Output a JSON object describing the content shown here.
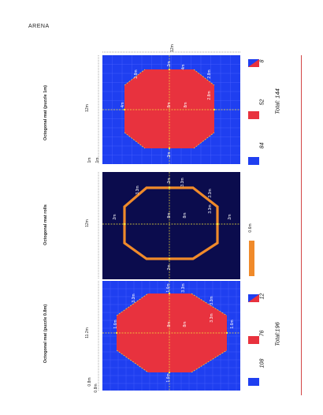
{
  "page": {
    "title": "ARENA"
  },
  "colors": {
    "blue": "#1f3ff0",
    "red": "#e8323e",
    "navy": "#0b0c4d",
    "orange": "#f08a2a",
    "yellow": "#f3e33a",
    "accent_line": "#d24646"
  },
  "panels": [
    {
      "title": "Octogonal mat (puzzle 1m)",
      "side_dim": "12m",
      "top_dim": "12m",
      "small_dims": [
        "1m",
        "1m"
      ],
      "labels": {
        "top": "2m",
        "bottom": "2m",
        "left": "4m",
        "right": "4m",
        "diag_tl": "2.8m",
        "diag_tr": "2.8m",
        "diag_bl": "2.8m",
        "center_a": "8m",
        "center_b": "8m"
      },
      "legend": [
        {
          "count": "84",
          "color": "blue"
        },
        {
          "count": "52",
          "color": "red"
        },
        {
          "count": "8",
          "color": "split"
        }
      ],
      "total": "Total: 144"
    },
    {
      "title": "Octogonal mat rolls",
      "side_dim": "12m",
      "labels": {
        "top": "2m",
        "bottom": "2m",
        "left": "2m",
        "right": "2m",
        "diag_tl": "3.3m",
        "diag_tr": "3.3m",
        "diag_bl": "3.3m",
        "diag_br": "3.3m",
        "center_a": "8m",
        "center_b": "8m"
      },
      "legend_width": "0.6m"
    },
    {
      "title": "Octogonal mat (puzzle 0.8m)",
      "side_dim": "11.2m",
      "small_dims": [
        "0.8m",
        "0.8m"
      ],
      "labels": {
        "top": "1.6m",
        "bottom": "1.6m",
        "left": "1.6m",
        "right": "1.6m",
        "diag_tl": "3.3m",
        "diag_tr": "3.3m",
        "diag_bl": "3.3m",
        "diag_br": "3.3m",
        "center_a": "8m",
        "center_b": "8m"
      },
      "legend": [
        {
          "count": "108",
          "color": "blue"
        },
        {
          "count": "76",
          "color": "red"
        },
        {
          "count": "12",
          "color": "split"
        }
      ],
      "total": "Total:196"
    }
  ]
}
